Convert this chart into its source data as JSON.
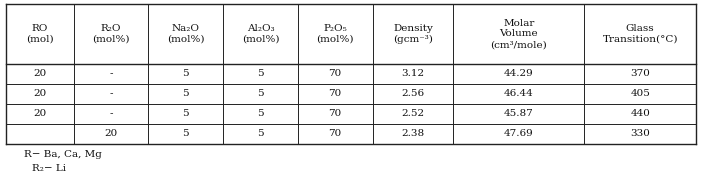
{
  "col_headers_line1": [
    "RO",
    "R₂O",
    "Na₂O",
    "Al₂O₃",
    "P₂O₅",
    "Density",
    "Molar",
    "Glass"
  ],
  "col_headers_line2": [
    "(mol)",
    "(mol%)",
    "(mol%)",
    "(mol%)",
    "(mol%)",
    "(gcm⁻³)",
    "Volume",
    "Transition(°C)"
  ],
  "col_headers_line3": [
    "",
    "",
    "",
    "",
    "",
    "",
    "(cm³/mole)",
    ""
  ],
  "rows": [
    [
      "20",
      "-",
      "5",
      "5",
      "70",
      "3.12",
      "44.29",
      "370"
    ],
    [
      "20",
      "-",
      "5",
      "5",
      "70",
      "2.56",
      "46.44",
      "405"
    ],
    [
      "20",
      "-",
      "5",
      "5",
      "70",
      "2.52",
      "45.87",
      "440"
    ],
    [
      "",
      "20",
      "5",
      "5",
      "70",
      "2.38",
      "47.69",
      "330"
    ]
  ],
  "footnote1": "R− Ba, Ca, Mg",
  "footnote2": "R₂− Li",
  "col_widths_rel": [
    0.88,
    0.97,
    0.97,
    0.97,
    0.97,
    1.05,
    1.7,
    1.45
  ],
  "bg_color": "#ffffff",
  "text_color": "#111111",
  "font_size": 7.5,
  "header_font_size": 7.5
}
